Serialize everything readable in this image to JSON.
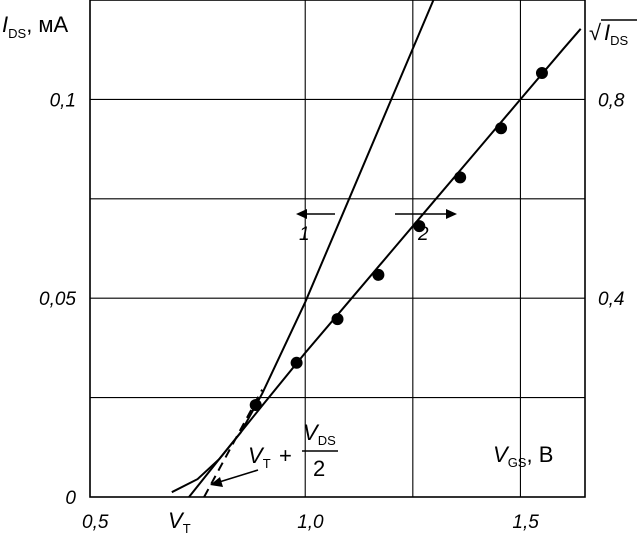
{
  "chart_data": {
    "type": "line",
    "x_axis": {
      "label": "V",
      "label_sub": "GS",
      "label_suffix": ", В",
      "range": [
        0.5,
        1.65
      ],
      "ticks": [
        {
          "value": 0.5,
          "label": "0,5"
        },
        {
          "value": 1.0,
          "label": "1,0"
        },
        {
          "value": 1.5,
          "label": "1,5"
        }
      ],
      "gridlines": [
        0.5,
        1.0,
        1.25,
        1.5
      ]
    },
    "y_axis_left": {
      "label": "I",
      "label_sub": "DS",
      "label_suffix": ", мА",
      "range": [
        0,
        0.125
      ],
      "ticks": [
        {
          "value": 0,
          "label": "0"
        },
        {
          "value": 0.05,
          "label": "0,05"
        },
        {
          "value": 0.1,
          "label": "0,1"
        }
      ],
      "gridlines": [
        0.025,
        0.05,
        0.075,
        0.1
      ]
    },
    "y_axis_right": {
      "label_radical": "√",
      "label": "I",
      "label_sub": "DS",
      "range": [
        0,
        1.0
      ],
      "ticks": [
        {
          "value": 0.4,
          "label": "0,4"
        },
        {
          "value": 0.8,
          "label": "0,8"
        }
      ]
    },
    "grid": true,
    "series": [
      {
        "name": "1",
        "axis": "left",
        "style": "solid",
        "x": [
          0.69,
          0.75,
          0.8,
          0.85,
          0.9,
          1.0,
          1.1,
          1.2,
          1.3,
          1.335
        ],
        "y": [
          0.0012,
          0.0045,
          0.0095,
          0.0162,
          0.026,
          0.049,
          0.0745,
          0.1,
          0.1255,
          0.1345
        ]
      },
      {
        "name": "2",
        "axis": "right",
        "style": "solid",
        "x": [
          0.73,
          0.8,
          0.9,
          1.0,
          1.1,
          1.2,
          1.3,
          1.4,
          1.5,
          1.6,
          1.64
        ],
        "y": [
          0.0,
          0.076,
          0.184,
          0.29,
          0.392,
          0.494,
          0.596,
          0.698,
          0.8,
          0.902,
          0.942
        ]
      },
      {
        "name": "tangent",
        "axis": "left",
        "style": "dashed",
        "x": [
          0.765,
          0.9
        ],
        "y": [
          0.0,
          0.027
        ]
      }
    ],
    "markers": {
      "series": "2",
      "x": [
        0.885,
        0.98,
        1.075,
        1.17,
        1.265,
        1.36,
        1.455,
        1.55
      ],
      "y": [
        0.185,
        0.27,
        0.358,
        0.447,
        0.545,
        0.643,
        0.742,
        0.853
      ]
    },
    "annotations": {
      "curve1_label": "1",
      "curve2_label": "2",
      "vt_label": "V",
      "vt_sub": "T",
      "formula_v": "V",
      "formula_v_sub": "T",
      "formula_plus": "+",
      "formula_num": "V",
      "formula_num_sub": "DS",
      "formula_den": "2"
    }
  }
}
